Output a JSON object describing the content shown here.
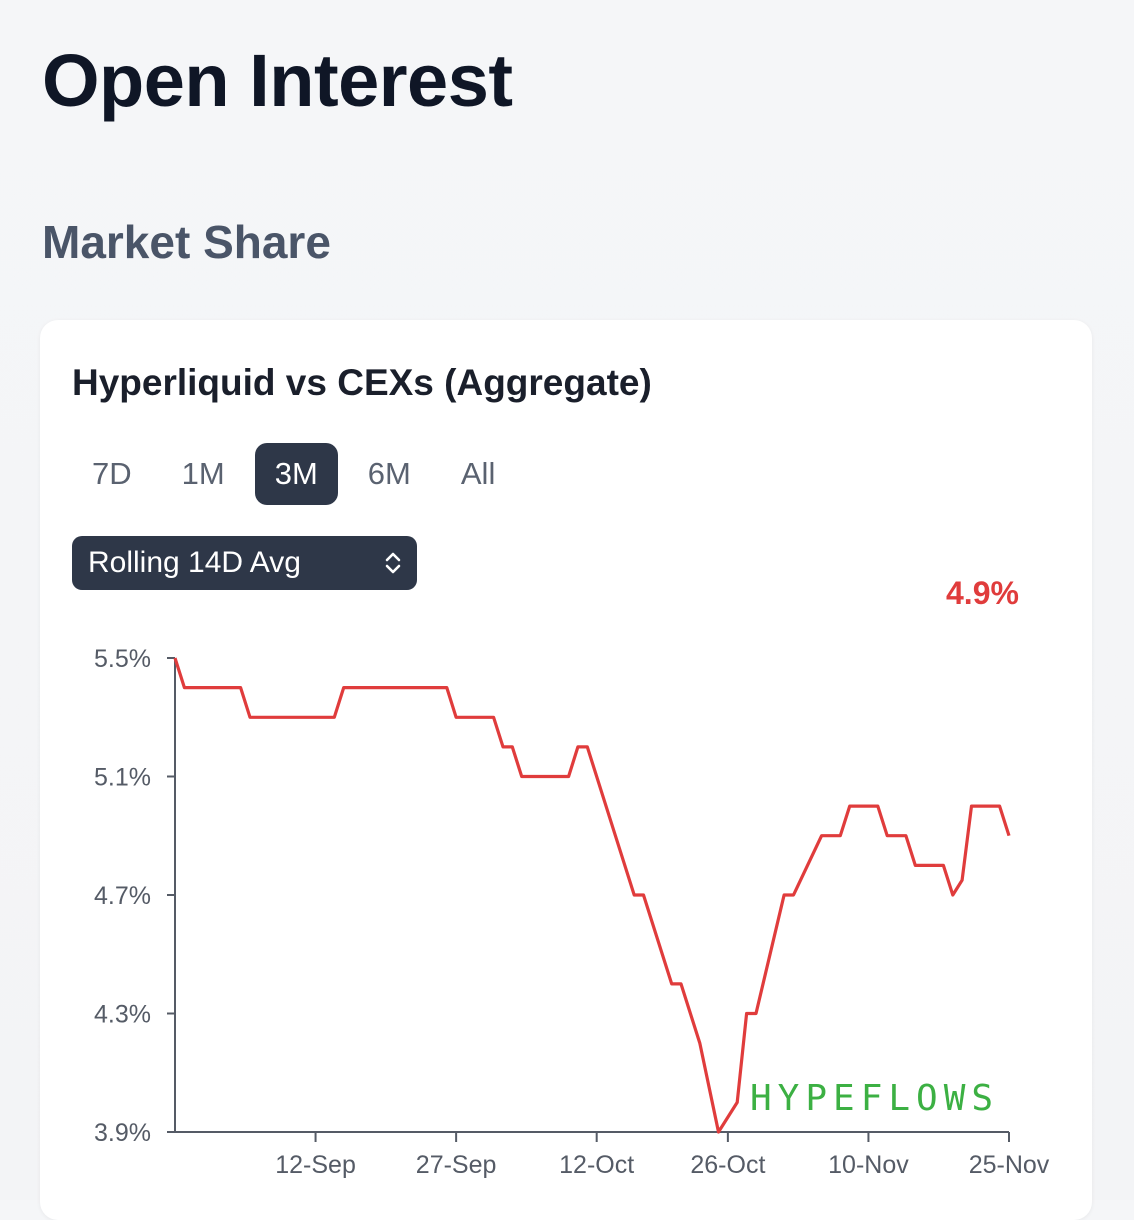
{
  "header": {
    "title": "Open Interest",
    "section": "Market Share"
  },
  "card": {
    "title": "Hyperliquid vs CEXs (Aggregate)",
    "tabs": [
      {
        "label": "7D",
        "active": false
      },
      {
        "label": "1M",
        "active": false
      },
      {
        "label": "3M",
        "active": true
      },
      {
        "label": "6M",
        "active": false
      },
      {
        "label": "All",
        "active": false
      }
    ],
    "select": {
      "value": "Rolling 14D Avg",
      "icon": "up-down-chevron-icon"
    },
    "current_value": "4.9%",
    "watermark": "HYPEFLOWS"
  },
  "colors": {
    "line": "#e03c3c",
    "accent_dark": "#2e3748",
    "watermark": "#3cb043"
  },
  "chart_data": {
    "type": "line",
    "x_ticks": [
      "12-Sep",
      "27-Sep",
      "12-Oct",
      "26-Oct",
      "10-Nov",
      "25-Nov"
    ],
    "y_ticks": [
      "5.5%",
      "5.1%",
      "4.7%",
      "4.3%",
      "3.9%"
    ],
    "ylim": [
      3.9,
      5.5
    ],
    "xlim": [
      "2024-08-28",
      "2024-11-25"
    ],
    "series": [
      {
        "points": [
          [
            "2024-08-28",
            5.5
          ],
          [
            "2024-08-29",
            5.4
          ],
          [
            "2024-09-04",
            5.4
          ],
          [
            "2024-09-05",
            5.3
          ],
          [
            "2024-09-14",
            5.3
          ],
          [
            "2024-09-15",
            5.4
          ],
          [
            "2024-09-26",
            5.4
          ],
          [
            "2024-09-27",
            5.3
          ],
          [
            "2024-10-01",
            5.3
          ],
          [
            "2024-10-02",
            5.2
          ],
          [
            "2024-10-03",
            5.2
          ],
          [
            "2024-10-04",
            5.1
          ],
          [
            "2024-10-09",
            5.1
          ],
          [
            "2024-10-10",
            5.2
          ],
          [
            "2024-10-11",
            5.2
          ],
          [
            "2024-10-14",
            4.9
          ],
          [
            "2024-10-16",
            4.7
          ],
          [
            "2024-10-17",
            4.7
          ],
          [
            "2024-10-20",
            4.4
          ],
          [
            "2024-10-21",
            4.4
          ],
          [
            "2024-10-23",
            4.2
          ],
          [
            "2024-10-25",
            3.9
          ],
          [
            "2024-10-27",
            4.0
          ],
          [
            "2024-10-28",
            4.3
          ],
          [
            "2024-10-29",
            4.3
          ],
          [
            "2024-11-01",
            4.7
          ],
          [
            "2024-11-02",
            4.7
          ],
          [
            "2024-11-05",
            4.9
          ],
          [
            "2024-11-07",
            4.9
          ],
          [
            "2024-11-08",
            5.0
          ],
          [
            "2024-11-11",
            5.0
          ],
          [
            "2024-11-12",
            4.9
          ],
          [
            "2024-11-14",
            4.9
          ],
          [
            "2024-11-15",
            4.8
          ],
          [
            "2024-11-18",
            4.8
          ],
          [
            "2024-11-19",
            4.7
          ],
          [
            "2024-11-20",
            4.75
          ],
          [
            "2024-11-21",
            5.0
          ],
          [
            "2024-11-24",
            5.0
          ],
          [
            "2024-11-25",
            4.9
          ]
        ]
      }
    ],
    "grid": false
  }
}
